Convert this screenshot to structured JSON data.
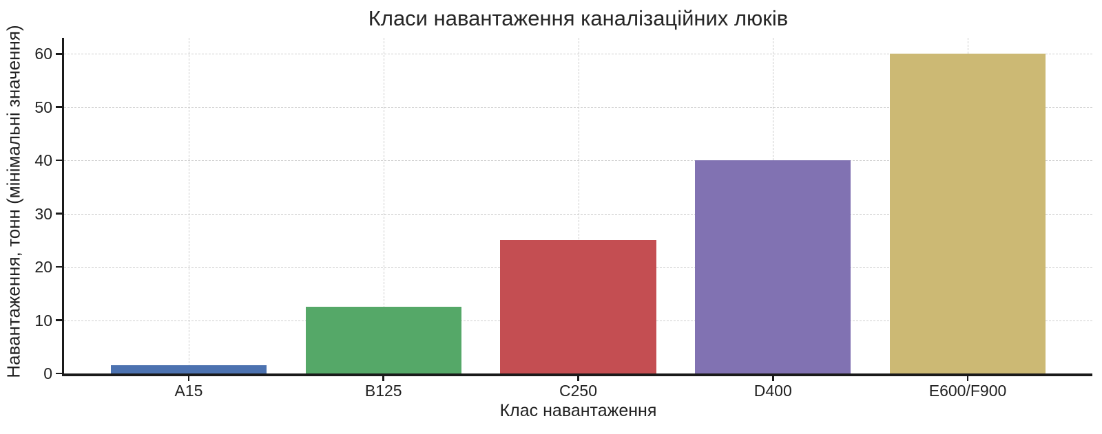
{
  "chart_data": {
    "type": "bar",
    "title": "Класи навантаження каналізаційних люків",
    "xlabel": "Клас навантаження",
    "ylabel": "Навантаження, тонн (мінімальні значення)",
    "categories": [
      "A15",
      "B125",
      "C250",
      "D400",
      "E600/F900"
    ],
    "values": [
      1.5,
      12.5,
      25,
      40,
      60
    ],
    "bar_colors": [
      "#4C72B0",
      "#55A868",
      "#C44E52",
      "#8172B2",
      "#CCB974"
    ],
    "yticks": [
      0,
      10,
      20,
      30,
      40,
      50,
      60
    ],
    "ylim": [
      0,
      63
    ],
    "xlim": [
      -0.64,
      4.64
    ],
    "bar_width": 0.8,
    "grid": {
      "on": true,
      "style": "dashed",
      "color": "#cdcdcd"
    },
    "legend": "none",
    "background": "#ffffff",
    "text_color": "#212121",
    "spine_color": "#1a1a1a"
  }
}
